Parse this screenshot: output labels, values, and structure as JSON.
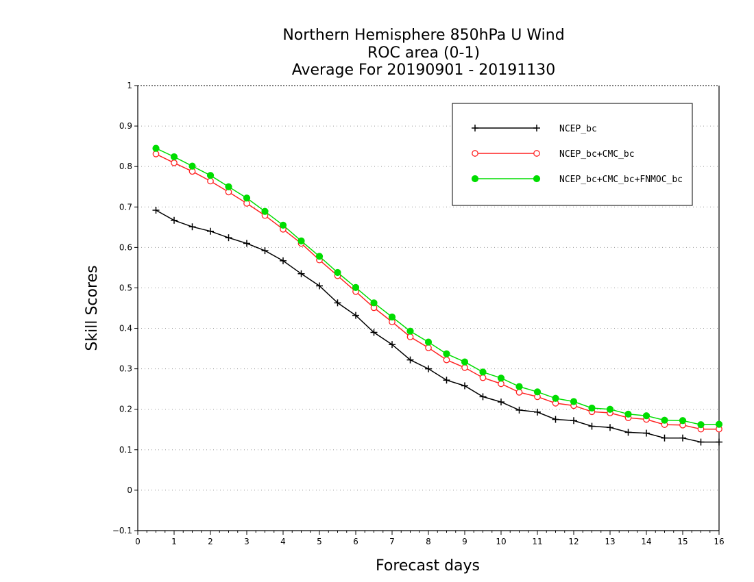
{
  "chart_data": {
    "type": "line",
    "title_lines": [
      "Northern Hemisphere 850hPa U Wind",
      "ROC area (0-1)",
      "Average For 20190901 - 20191130"
    ],
    "xlabel": "Forecast days",
    "ylabel": "Skill Scores",
    "xlim": [
      0,
      16
    ],
    "ylim": [
      -0.1,
      1
    ],
    "x_ticks": [
      "0",
      "1",
      "2",
      "3",
      "4",
      "5",
      "6",
      "7",
      "8",
      "9",
      "10",
      "11",
      "12",
      "13",
      "14",
      "15",
      "16"
    ],
    "y_ticks": [
      "-0.1",
      "0",
      "0.1",
      "0.2",
      "0.3",
      "0.4",
      "0.5",
      "0.6",
      "0.7",
      "0.8",
      "0.9",
      "1"
    ],
    "grid": true,
    "legend_position": "top-right",
    "x": [
      0.5,
      1,
      1.5,
      2,
      2.5,
      3,
      3.5,
      4,
      4.5,
      5,
      5.5,
      6,
      6.5,
      7,
      7.5,
      8,
      8.5,
      9,
      9.5,
      10,
      10.5,
      11,
      11.5,
      12,
      12.5,
      13,
      13.5,
      14,
      14.5,
      15,
      15.5,
      16
    ],
    "series": [
      {
        "name": "NCEP_bc",
        "color": "#000000",
        "marker": "plus",
        "values": [
          0.692,
          0.667,
          0.651,
          0.64,
          0.624,
          0.61,
          0.592,
          0.567,
          0.535,
          0.505,
          0.463,
          0.432,
          0.39,
          0.36,
          0.322,
          0.3,
          0.272,
          0.258,
          0.231,
          0.218,
          0.198,
          0.193,
          0.175,
          0.172,
          0.158,
          0.155,
          0.143,
          0.141,
          0.129,
          0.129,
          0.119,
          0.119
        ]
      },
      {
        "name": "NCEP_bc+CMC_bc",
        "color": "#ff2222",
        "marker": "open-circle",
        "values": [
          0.831,
          0.809,
          0.788,
          0.764,
          0.737,
          0.709,
          0.679,
          0.645,
          0.61,
          0.569,
          0.53,
          0.491,
          0.451,
          0.416,
          0.379,
          0.352,
          0.322,
          0.303,
          0.278,
          0.263,
          0.242,
          0.231,
          0.215,
          0.209,
          0.194,
          0.191,
          0.179,
          0.175,
          0.162,
          0.161,
          0.151,
          0.151
        ]
      },
      {
        "name": "NCEP_bc+CMC_bc+FNMOC_bc",
        "color": "#00dd00",
        "marker": "filled-circle",
        "values": [
          0.845,
          0.824,
          0.801,
          0.778,
          0.75,
          0.722,
          0.689,
          0.655,
          0.616,
          0.578,
          0.538,
          0.501,
          0.463,
          0.428,
          0.393,
          0.366,
          0.337,
          0.317,
          0.292,
          0.277,
          0.256,
          0.243,
          0.227,
          0.219,
          0.203,
          0.2,
          0.188,
          0.184,
          0.173,
          0.172,
          0.162,
          0.163
        ]
      }
    ]
  }
}
